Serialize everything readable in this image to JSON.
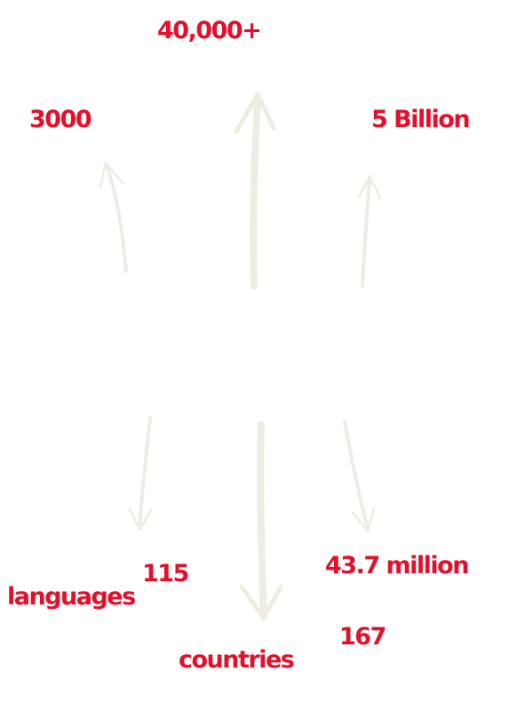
{
  "colors": {
    "stat_text": "#e3102b",
    "arrow": "#efece2"
  },
  "stats": {
    "top": "40,000+",
    "upper_left": "3000",
    "upper_right": "5 Billion",
    "lower_left_number": "115",
    "lower_left_label": "languages",
    "lower_center_number": "167",
    "lower_center_label": "countries",
    "lower_right": "43.7 million"
  },
  "arrows": [
    {
      "name": "arrow-up-center",
      "direction": "up"
    },
    {
      "name": "arrow-up-left",
      "direction": "up"
    },
    {
      "name": "arrow-up-right",
      "direction": "up"
    },
    {
      "name": "arrow-down-left",
      "direction": "down"
    },
    {
      "name": "arrow-down-center",
      "direction": "down"
    },
    {
      "name": "arrow-down-right",
      "direction": "down"
    }
  ]
}
